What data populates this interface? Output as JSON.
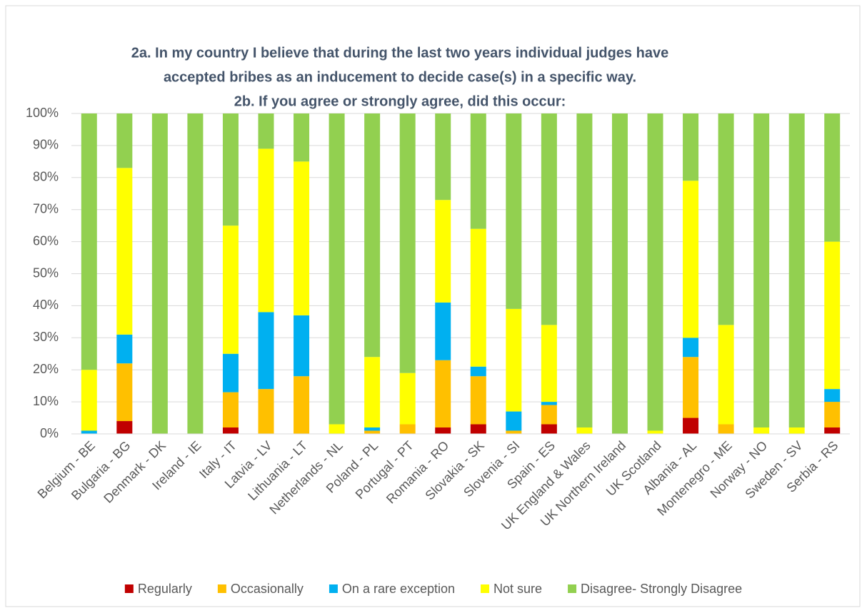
{
  "chart_data": {
    "type": "stacked_bar",
    "title": [
      "2a. In my country I believe that during the last two years individual judges have",
      "accepted bribes as an inducement to decide case(s) in a specific way.",
      "2b. If you agree or strongly agree, did this occur:"
    ],
    "categories": [
      "Belgium - BE",
      "Bulgaria - BG",
      "Denmark - DK",
      "Ireland - IE",
      "Italy - IT",
      "Latvia - LV",
      "Lithuania - LT",
      "Netherlands - NL",
      "Poland - PL",
      "Portugal - PT",
      "Romania - RO",
      "Slovakia - SK",
      "Slovenia - SI",
      "Spain - ES",
      "UK England & Wales",
      "UK Northern Ireland",
      "UK Scotland",
      "Albania - AL",
      "Montenegro - ME",
      "Norway - NO",
      "Sweden - SV",
      "Serbia - RS"
    ],
    "series": [
      {
        "name": "Regularly",
        "color": "#c00000",
        "values": [
          0,
          4,
          0,
          0,
          2,
          0,
          0,
          0,
          0,
          0,
          2,
          3,
          0,
          3,
          0,
          0,
          0,
          5,
          0,
          0,
          0,
          2
        ]
      },
      {
        "name": "Occasionally",
        "color": "#ffc000",
        "values": [
          0,
          18,
          0,
          0,
          11,
          14,
          18,
          0,
          1,
          3,
          21,
          15,
          1,
          6,
          0,
          0,
          0,
          19,
          3,
          0,
          0,
          8
        ]
      },
      {
        "name": "On a rare exception",
        "color": "#00b0f0",
        "values": [
          1,
          9,
          0,
          0,
          12,
          24,
          19,
          0,
          1,
          0,
          18,
          3,
          6,
          1,
          0,
          0,
          0,
          6,
          0,
          0,
          0,
          4
        ]
      },
      {
        "name": "Not sure",
        "color": "#ffff00",
        "values": [
          19,
          52,
          0,
          0,
          40,
          51,
          48,
          3,
          22,
          16,
          32,
          43,
          32,
          24,
          2,
          0,
          1,
          49,
          31,
          2,
          2,
          46
        ]
      },
      {
        "name": "Disagree- Strongly Disagree",
        "color": "#92d050",
        "values": [
          80,
          17,
          100,
          100,
          35,
          11,
          15,
          97,
          76,
          81,
          27,
          36,
          61,
          66,
          98,
          100,
          99,
          21,
          66,
          98,
          98,
          40
        ]
      }
    ],
    "ylim": [
      0,
      100
    ],
    "yticks": [
      {
        "value": 0,
        "label": "0%"
      },
      {
        "value": 10,
        "label": "10%"
      },
      {
        "value": 20,
        "label": "20%"
      },
      {
        "value": 30,
        "label": "30%"
      },
      {
        "value": 40,
        "label": "40%"
      },
      {
        "value": 50,
        "label": "50%"
      },
      {
        "value": 60,
        "label": "60%"
      },
      {
        "value": 70,
        "label": "70%"
      },
      {
        "value": 80,
        "label": "80%"
      },
      {
        "value": 90,
        "label": "90%"
      },
      {
        "value": 100,
        "label": "100%"
      }
    ],
    "grid": true,
    "legend": "bottom"
  }
}
